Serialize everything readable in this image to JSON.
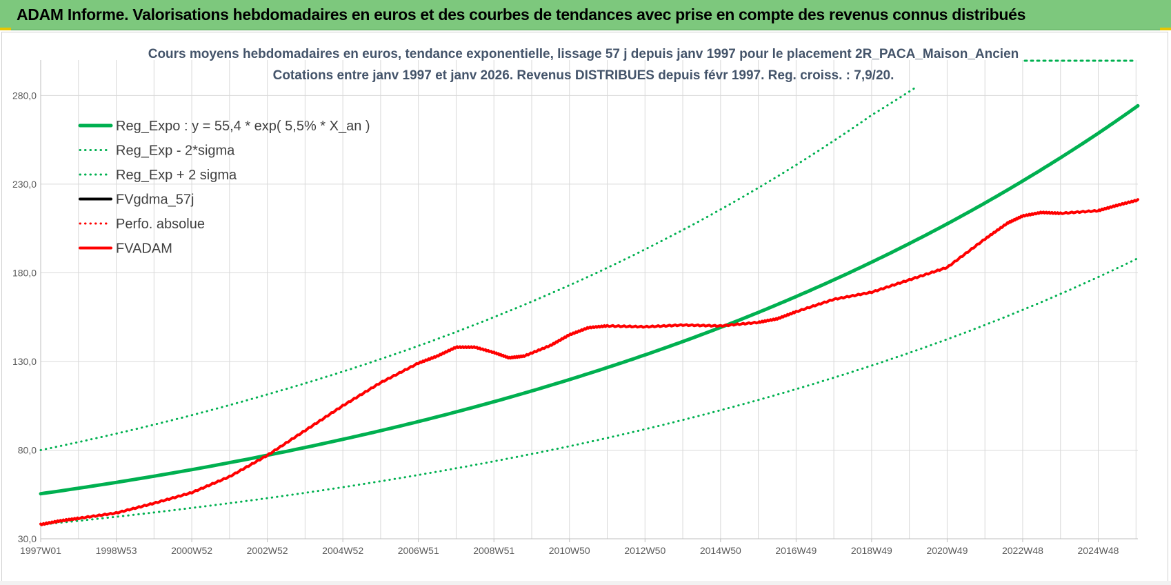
{
  "banner": {
    "title": "ADAM Informe. Valorisations hebdomadaires en euros et des courbes de tendances avec prise en compte des revenus connus distribués"
  },
  "colors": {
    "banner": "#7dc87d",
    "trend": "#00b050",
    "fvadam": "#ff0000",
    "fvgdma": "#000000",
    "perfo": "#ff0000",
    "grid": "#d9d9d9",
    "text": "#44546a"
  },
  "chart_data": {
    "type": "line",
    "title": "Cours moyens hebdomadaires en euros, tendance exponentielle, lissage 57 j depuis janv 1997 pour le placement 2R_PACA_Maison_Ancien",
    "subtitle": "Cotations entre janv 1997 et janv 2026. Revenus DISTRIBUES depuis févr 1997. Reg. croiss. : 7,9/20.",
    "xlabel": "",
    "ylabel": "",
    "x_range": [
      1997.0,
      2026.05
    ],
    "ylim": [
      30,
      300
    ],
    "y_ticks": [
      30,
      80,
      130,
      180,
      230,
      280
    ],
    "y_tick_labels": [
      "30,0",
      "80,0",
      "130,0",
      "180,0",
      "230,0",
      "280,0"
    ],
    "x_ticks": [
      {
        "label": "1997W01",
        "x": 1997.0
      },
      {
        "label": "1998W53",
        "x": 1999.0
      },
      {
        "label": "2000W52",
        "x": 2001.0
      },
      {
        "label": "2002W52",
        "x": 2003.0
      },
      {
        "label": "2004W52",
        "x": 2005.0
      },
      {
        "label": "2006W51",
        "x": 2007.0
      },
      {
        "label": "2008W51",
        "x": 2009.0
      },
      {
        "label": "2010W50",
        "x": 2011.0
      },
      {
        "label": "2012W50",
        "x": 2013.0
      },
      {
        "label": "2014W50",
        "x": 2015.0
      },
      {
        "label": "2016W49",
        "x": 2017.0
      },
      {
        "label": "2018W49",
        "x": 2019.0
      },
      {
        "label": "2020W49",
        "x": 2021.0
      },
      {
        "label": "2022W48",
        "x": 2023.0
      },
      {
        "label": "2024W48",
        "x": 2025.0
      }
    ],
    "grid": true,
    "legend_position": "top-left",
    "series": [
      {
        "name": "Reg_Expo : y = 55,4 * exp( 5,5% *  X_an )",
        "style": "solid",
        "color": "#00b050",
        "x": [
          1997.0,
          1999.0,
          2001.0,
          2003.0,
          2005.0,
          2007.0,
          2009.0,
          2011.0,
          2013.0,
          2015.0,
          2017.0,
          2019.0,
          2021.0,
          2023.0,
          2025.0,
          2026.05
        ],
        "y": [
          55.4,
          61.8,
          69.0,
          77.1,
          86.1,
          96.1,
          107.3,
          119.8,
          133.7,
          149.2,
          166.6,
          186.0,
          207.6,
          231.8,
          258.7,
          274.2
        ]
      },
      {
        "name": "Reg_Exp - 2*sigma",
        "style": "dotted",
        "color": "#00b050",
        "x": [
          1997.0,
          1999.0,
          2001.0,
          2003.0,
          2005.0,
          2007.0,
          2009.0,
          2011.0,
          2013.0,
          2015.0,
          2017.0,
          2019.0,
          2021.0,
          2023.0,
          2025.0,
          2026.05
        ],
        "y": [
          38.0,
          42.4,
          47.4,
          52.9,
          59.1,
          66.0,
          73.7,
          82.2,
          91.8,
          102.5,
          114.4,
          127.7,
          142.5,
          159.1,
          177.6,
          188.2
        ]
      },
      {
        "name": "Reg_Exp + 2 sigma",
        "style": "dotted",
        "color": "#00b050",
        "x": [
          1997.0,
          1999.0,
          2001.0,
          2003.0,
          2005.0,
          2007.0,
          2009.0,
          2011.0,
          2013.0,
          2015.0,
          2017.0,
          2019.0,
          2020.2
        ],
        "y": [
          80.0,
          89.3,
          99.7,
          111.4,
          124.3,
          138.8,
          155.0,
          173.0,
          193.2,
          215.7,
          240.8,
          268.9,
          285.0
        ]
      },
      {
        "name": "FVgdma_57j",
        "style": "solid",
        "color": "#000000",
        "x": [],
        "y": []
      },
      {
        "name": "Perfo. absolue",
        "style": "dotted",
        "color": "#ff0000",
        "x": [],
        "y": []
      },
      {
        "name": "FVADAM",
        "style": "solid",
        "color": "#ff0000",
        "x": [
          1997.0,
          1997.5,
          1998.0,
          1999.0,
          2000.0,
          2001.0,
          2002.0,
          2003.0,
          2004.0,
          2005.0,
          2006.0,
          2007.0,
          2007.5,
          2008.0,
          2008.5,
          2009.0,
          2009.4,
          2009.8,
          2010.5,
          2011.0,
          2011.5,
          2012.0,
          2013.0,
          2014.0,
          2015.0,
          2016.0,
          2016.5,
          2017.0,
          2018.0,
          2019.0,
          2020.0,
          2021.0,
          2022.0,
          2022.6,
          2023.0,
          2023.5,
          2024.0,
          2025.0,
          2025.5,
          2026.05
        ],
        "y": [
          38.0,
          40.0,
          41.5,
          44.5,
          50.0,
          56.0,
          65.0,
          77.0,
          91.0,
          105.0,
          118.0,
          129.0,
          133.0,
          138.0,
          138.0,
          135.0,
          132.0,
          133.0,
          139.0,
          145.0,
          149.0,
          150.0,
          149.5,
          150.5,
          150.0,
          152.0,
          154.0,
          158.0,
          165.0,
          169.0,
          176.0,
          183.0,
          199.0,
          208.0,
          212.0,
          214.0,
          213.5,
          215.0,
          218.0,
          221.0
        ]
      }
    ]
  }
}
